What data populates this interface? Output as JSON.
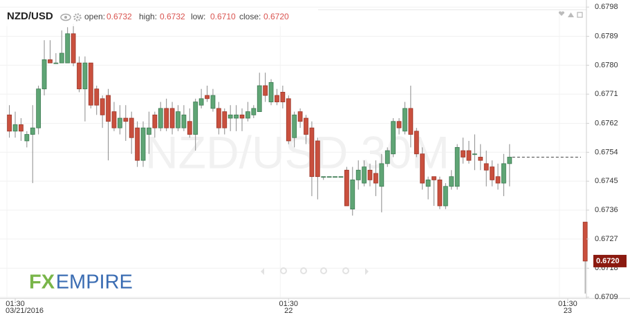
{
  "chart_data": {
    "type": "candlestick",
    "title": "NZD/USD",
    "ohlc_legend": [
      {
        "label": "open:",
        "value": "0.6732"
      },
      {
        "label": "high:",
        "value": "0.6732"
      },
      {
        "label": "low:",
        "value": "0.6710"
      },
      {
        "label": "close:",
        "value": "0.6720"
      }
    ],
    "watermark": "NZD/USD 30M",
    "logo": [
      "FX",
      "EMPIRE"
    ],
    "up_color": "#5fa575",
    "down_color": "#c9503e",
    "ylim": [
      0.67085,
      0.67974
    ],
    "yticks": [
      {
        "value": 0.67089,
        "label": "0.6709"
      },
      {
        "value": 0.67178,
        "label": "0.6718"
      },
      {
        "value": 0.67268,
        "label": "0.6727"
      },
      {
        "value": 0.67357,
        "label": "0.6736"
      },
      {
        "value": 0.67446,
        "label": "0.6745"
      },
      {
        "value": 0.67535,
        "label": "0.6754"
      },
      {
        "value": 0.67624,
        "label": "0.6762"
      },
      {
        "value": 0.67714,
        "label": "0.6771"
      },
      {
        "value": 0.67803,
        "label": "0.6780"
      },
      {
        "value": 0.67892,
        "label": "0.6789"
      },
      {
        "value": 0.67982,
        "label": "0.6798"
      }
    ],
    "grid": true,
    "categories": [
      null,
      "01:30",
      null,
      null,
      null,
      null,
      null,
      null,
      null,
      null,
      null,
      null,
      null,
      null,
      null,
      null,
      null,
      null,
      null,
      null,
      null,
      null,
      null,
      null,
      null,
      null,
      null,
      null,
      null,
      null,
      null,
      null,
      null,
      null,
      null,
      null,
      null,
      null,
      null,
      null,
      null,
      null,
      null,
      null,
      null,
      null,
      null,
      null,
      "01:30",
      null,
      null,
      null,
      null,
      null,
      null,
      null,
      null,
      null,
      null,
      null,
      null,
      null,
      null,
      null,
      null,
      null,
      null,
      null,
      null,
      null,
      null,
      null,
      null,
      null,
      null,
      null,
      null,
      null,
      null,
      null,
      null,
      null,
      null,
      null,
      null,
      null,
      null,
      null,
      null,
      null,
      null,
      null,
      null,
      null,
      null,
      null,
      "01:30",
      null,
      null,
      null
    ],
    "category_sublabels": [
      null,
      "03/21/2016",
      null,
      null,
      null,
      null,
      null,
      null,
      null,
      null,
      null,
      null,
      null,
      null,
      null,
      null,
      null,
      null,
      null,
      null,
      null,
      null,
      null,
      null,
      null,
      null,
      null,
      null,
      null,
      null,
      null,
      null,
      null,
      null,
      null,
      null,
      null,
      null,
      null,
      null,
      null,
      null,
      null,
      null,
      null,
      null,
      null,
      null,
      "22",
      null,
      null,
      null,
      null,
      null,
      null,
      null,
      null,
      null,
      null,
      null,
      null,
      null,
      null,
      null,
      null,
      null,
      null,
      null,
      null,
      null,
      null,
      null,
      null,
      null,
      null,
      null,
      null,
      null,
      null,
      null,
      null,
      null,
      null,
      null,
      null,
      null,
      null,
      null,
      null,
      null,
      null,
      null,
      null,
      null,
      null,
      null,
      "23",
      null,
      null,
      null
    ],
    "open": [
      0.6765,
      0.676,
      0.6762,
      0.6757,
      0.6759,
      0.6761,
      0.6773,
      0.6782,
      0.6781,
      0.6781,
      0.6781,
      0.679,
      0.6781,
      0.6773,
      0.6781,
      0.6773,
      0.677,
      0.6771,
      0.6766,
      0.6761,
      0.6764,
      0.6764,
      0.6761,
      0.6751,
      0.6759,
      0.6765,
      0.6761,
      0.6767,
      0.6767,
      0.6761,
      0.6761,
      0.6763,
      0.6759,
      0.6768,
      0.6771,
      0.6767,
      0.6767,
      0.6766,
      0.6764,
      0.6764,
      0.6765,
      0.6764,
      0.6765,
      0.6766,
      0.6774,
      0.6769,
      0.6771,
      0.6772,
      0.677,
      0.6758,
      0.6766,
      0.6764,
      0.6761,
      0.6757,
      0.6746,
      0.6746,
      0.6746,
      0.6746,
      0.6748,
      0.6736,
      0.6745,
      0.6744,
      0.6748,
      0.6747,
      0.6743,
      0.675,
      0.6753,
      0.6763,
      0.676,
      0.6767,
      0.676,
      0.6753,
      0.6743,
      0.6746,
      0.6745,
      0.6737,
      0.6743,
      0.6743,
      0.6754,
      0.6754,
      0.6753,
      0.6752,
      0.675,
      0.6749,
      0.6746,
      0.6744,
      0.675,
      null,
      null,
      null,
      null,
      null,
      null,
      null,
      null,
      null,
      null,
      null,
      null,
      0.6732
    ],
    "high": [
      0.6768,
      0.6766,
      0.6764,
      0.676,
      0.6768,
      0.6774,
      0.6788,
      0.6788,
      0.6784,
      0.6791,
      0.6792,
      0.6793,
      0.6783,
      0.6783,
      0.6781,
      0.6774,
      0.6771,
      0.6773,
      0.6769,
      0.6768,
      0.6768,
      0.6766,
      0.6763,
      0.6763,
      0.6766,
      0.6766,
      0.6769,
      0.677,
      0.6769,
      0.6768,
      0.6768,
      0.6767,
      0.677,
      0.6773,
      0.6774,
      0.6773,
      0.6769,
      0.6767,
      0.6768,
      0.6768,
      0.6767,
      0.6769,
      0.6768,
      0.6778,
      0.6778,
      0.6776,
      0.6773,
      0.6774,
      0.6771,
      0.6766,
      0.6767,
      0.6765,
      0.6763,
      0.6758,
      0.6746,
      0.6746,
      0.6746,
      0.6746,
      0.6749,
      0.6749,
      0.6751,
      0.6751,
      0.675,
      0.6751,
      0.6753,
      0.6755,
      0.6764,
      0.6764,
      0.6769,
      0.6774,
      0.6761,
      0.6755,
      0.6746,
      0.6746,
      0.6746,
      0.6744,
      0.6748,
      0.6756,
      0.6758,
      0.6757,
      0.6759,
      0.6756,
      0.6754,
      0.6751,
      0.675,
      0.6753,
      0.6756,
      null,
      null,
      null,
      null,
      null,
      null,
      null,
      null,
      null,
      null,
      null,
      null,
      0.6732
    ],
    "low": [
      0.6758,
      0.6758,
      0.6757,
      0.6755,
      0.6744,
      0.6759,
      0.6771,
      0.6781,
      0.6781,
      0.6781,
      0.6781,
      0.678,
      0.6772,
      0.6763,
      0.6767,
      0.6765,
      0.6761,
      0.6751,
      0.676,
      0.6759,
      0.6757,
      0.6753,
      0.6749,
      0.6749,
      0.6753,
      0.6758,
      0.676,
      0.676,
      0.6759,
      0.676,
      0.676,
      0.6758,
      0.6754,
      0.6767,
      0.6769,
      0.6766,
      0.6759,
      0.6759,
      0.676,
      0.676,
      0.676,
      0.6763,
      0.6764,
      0.6766,
      0.6769,
      0.6768,
      0.6768,
      0.6767,
      0.6756,
      0.6755,
      0.6761,
      0.6756,
      0.674,
      0.6739,
      0.6745,
      0.6746,
      0.6746,
      0.6746,
      0.6737,
      0.6734,
      0.6742,
      0.6743,
      0.6743,
      0.674,
      0.6735,
      0.6749,
      0.6752,
      0.6759,
      0.6759,
      0.6755,
      0.6752,
      0.6742,
      0.6739,
      0.6737,
      0.6736,
      0.6736,
      0.6742,
      0.6742,
      0.675,
      0.675,
      0.6748,
      0.6748,
      0.6743,
      0.6743,
      0.6742,
      0.674,
      0.6743,
      null,
      null,
      null,
      null,
      null,
      null,
      null,
      null,
      null,
      null,
      null,
      null,
      0.671
    ],
    "close": [
      0.676,
      0.6762,
      0.676,
      0.6759,
      0.6761,
      0.6773,
      0.6782,
      0.6781,
      0.6781,
      0.6784,
      0.679,
      0.6781,
      0.6773,
      0.6781,
      0.6768,
      0.6768,
      0.6765,
      0.6763,
      0.6761,
      0.6764,
      0.6763,
      0.6758,
      0.6751,
      0.6761,
      0.6761,
      0.6761,
      0.6767,
      0.6761,
      0.6761,
      0.6766,
      0.6765,
      0.6759,
      0.6769,
      0.677,
      0.677,
      0.6771,
      0.6761,
      0.6761,
      0.6765,
      0.6765,
      0.6764,
      0.6766,
      0.6767,
      0.6774,
      0.6771,
      0.6775,
      0.6769,
      0.6769,
      0.6757,
      0.6765,
      0.6763,
      0.6759,
      0.6746,
      0.6746,
      0.6746,
      0.6746,
      0.6746,
      0.6746,
      0.6737,
      0.6745,
      0.6748,
      0.6749,
      0.6745,
      0.6744,
      0.675,
      0.6754,
      0.6763,
      0.6761,
      0.6767,
      0.6759,
      0.6753,
      0.6744,
      0.6745,
      0.6745,
      0.6737,
      0.6743,
      0.6746,
      0.6755,
      0.6752,
      0.6751,
      0.6753,
      0.6751,
      0.6748,
      0.6745,
      0.6744,
      0.675,
      0.6752,
      null,
      null,
      null,
      null,
      null,
      null,
      null,
      null,
      null,
      null,
      null,
      null,
      0.672
    ]
  }
}
